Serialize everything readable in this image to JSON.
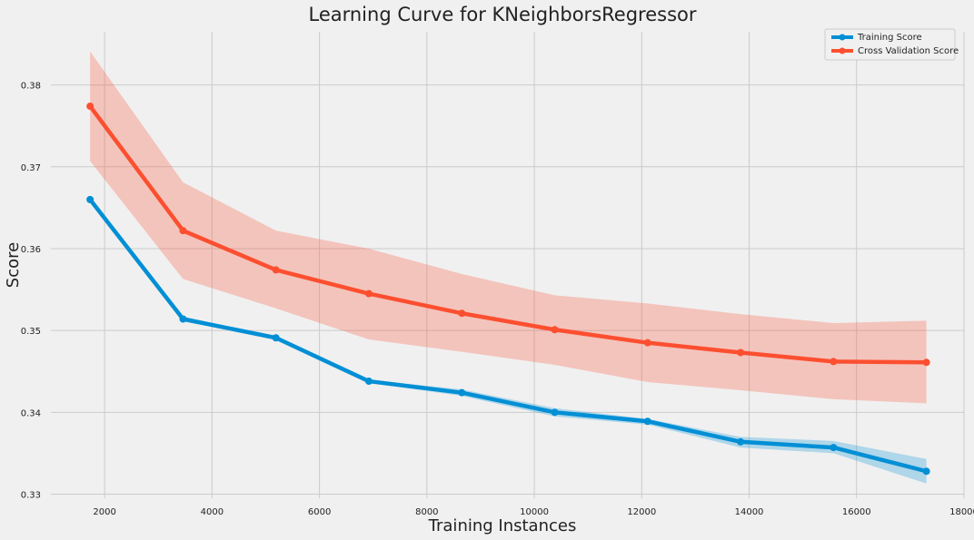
{
  "chart_data": {
    "type": "line",
    "title": "Learning Curve for KNeighborsRegressor",
    "xlabel": "Training Instances",
    "ylabel": "Score",
    "xlim": [
      1000,
      18000
    ],
    "ylim": [
      0.3295,
      0.3865
    ],
    "x_ticks": [
      2000,
      4000,
      6000,
      8000,
      10000,
      12000,
      14000,
      16000,
      18000
    ],
    "y_ticks": [
      0.33,
      0.34,
      0.35,
      0.36,
      0.37,
      0.38
    ],
    "grid": true,
    "legend_position": "top-right",
    "x": [
      1730,
      3460,
      5190,
      6920,
      8650,
      10380,
      12110,
      13840,
      15570,
      17300
    ],
    "series": [
      {
        "name": "Training Score",
        "color": "#008fd5",
        "values": [
          0.366,
          0.3514,
          0.3491,
          0.3438,
          0.3424,
          0.34,
          0.3389,
          0.3364,
          0.3357,
          0.3328
        ],
        "band_upper": [
          0.366,
          0.3517,
          0.3492,
          0.344,
          0.3428,
          0.3405,
          0.3392,
          0.337,
          0.3365,
          0.3343
        ],
        "band_lower": [
          0.366,
          0.3511,
          0.3489,
          0.3436,
          0.342,
          0.3395,
          0.3385,
          0.3357,
          0.335,
          0.3313
        ]
      },
      {
        "name": "Cross Validation Score",
        "color": "#fc4f30",
        "values": [
          0.3774,
          0.3622,
          0.3574,
          0.3545,
          0.3521,
          0.3501,
          0.3485,
          0.3473,
          0.3462,
          0.3461
        ],
        "band_upper": [
          0.3841,
          0.3681,
          0.3622,
          0.36,
          0.3569,
          0.3543,
          0.3533,
          0.352,
          0.3509,
          0.3512
        ],
        "band_lower": [
          0.3707,
          0.3563,
          0.3527,
          0.3489,
          0.3474,
          0.3458,
          0.3437,
          0.3427,
          0.3416,
          0.3411
        ]
      }
    ]
  }
}
